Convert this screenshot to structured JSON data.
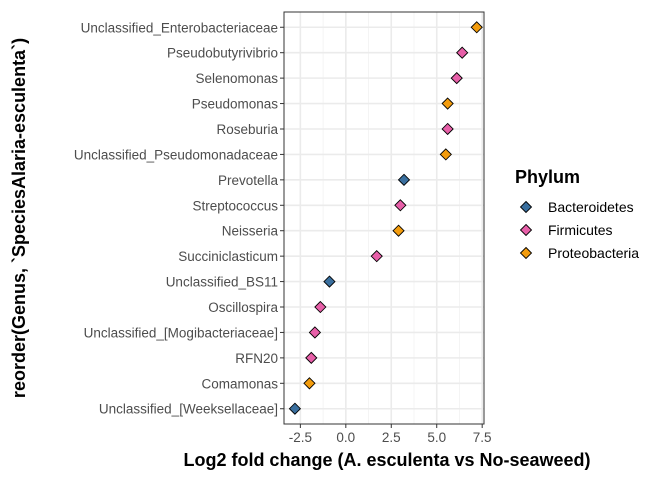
{
  "chart_data": {
    "type": "scatter",
    "xlabel": "Log2 fold change (A. esculenta vs No-seaweed)",
    "ylabel": "reorder(Genus, `SpeciesAlaria-esculenta`)",
    "xlim": [
      -3.4,
      7.6
    ],
    "x_ticks": [
      -2.5,
      0.0,
      2.5,
      5.0,
      7.5
    ],
    "x_tick_labels": [
      "-2.5",
      "0.0",
      "2.5",
      "5.0",
      "7.5"
    ],
    "grid": true,
    "legend_position": "right",
    "categories": [
      "Unclassified_Enterobacteriaceae",
      "Pseudobutyrivibrio",
      "Selenomonas",
      "Pseudomonas",
      "Roseburia",
      "Unclassified_Pseudomonadaceae",
      "Prevotella",
      "Streptococcus",
      "Neisseria",
      "Succiniclasticum",
      "Unclassified_BS11",
      "Oscillospira",
      "Unclassified_[Mogibacteriaceae]",
      "RFN20",
      "Comamonas",
      "Unclassified_[Weeksellaceae]"
    ],
    "points": [
      {
        "genus": "Unclassified_Enterobacteriaceae",
        "x": 7.2,
        "phylum": "Proteobacteria"
      },
      {
        "genus": "Pseudobutyrivibrio",
        "x": 6.4,
        "phylum": "Firmicutes"
      },
      {
        "genus": "Selenomonas",
        "x": 6.1,
        "phylum": "Firmicutes"
      },
      {
        "genus": "Pseudomonas",
        "x": 5.6,
        "phylum": "Proteobacteria"
      },
      {
        "genus": "Roseburia",
        "x": 5.6,
        "phylum": "Firmicutes"
      },
      {
        "genus": "Unclassified_Pseudomonadaceae",
        "x": 5.5,
        "phylum": "Proteobacteria"
      },
      {
        "genus": "Prevotella",
        "x": 3.2,
        "phylum": "Bacteroidetes"
      },
      {
        "genus": "Streptococcus",
        "x": 3.0,
        "phylum": "Firmicutes"
      },
      {
        "genus": "Neisseria",
        "x": 2.9,
        "phylum": "Proteobacteria"
      },
      {
        "genus": "Succiniclasticum",
        "x": 1.7,
        "phylum": "Firmicutes"
      },
      {
        "genus": "Unclassified_BS11",
        "x": -0.9,
        "phylum": "Bacteroidetes"
      },
      {
        "genus": "Oscillospira",
        "x": -1.4,
        "phylum": "Firmicutes"
      },
      {
        "genus": "Unclassified_[Mogibacteriaceae]",
        "x": -1.7,
        "phylum": "Firmicutes"
      },
      {
        "genus": "RFN20",
        "x": -1.9,
        "phylum": "Firmicutes"
      },
      {
        "genus": "Comamonas",
        "x": -2.0,
        "phylum": "Proteobacteria"
      },
      {
        "genus": "Unclassified_[Weeksellaceae]",
        "x": -2.8,
        "phylum": "Bacteroidetes"
      }
    ],
    "legend": {
      "title": "Phylum",
      "entries": [
        {
          "name": "Bacteroidetes",
          "color": "#3a6f9e"
        },
        {
          "name": "Firmicutes",
          "color": "#e75fa8"
        },
        {
          "name": "Proteobacteria",
          "color": "#f39c0d"
        }
      ]
    }
  }
}
